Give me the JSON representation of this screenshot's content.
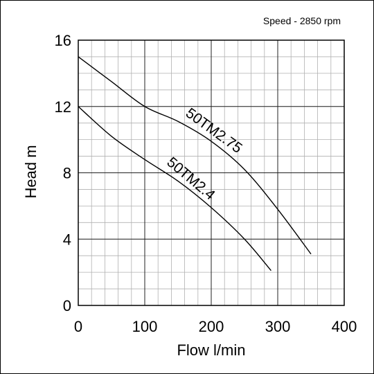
{
  "chart_data": {
    "type": "line",
    "title": "",
    "annotation": "Speed - 2850 rpm",
    "xlabel": "Flow l/min",
    "ylabel": "Head m",
    "xlim": [
      0,
      400
    ],
    "ylim": [
      0,
      16
    ],
    "x_ticks": [
      "0",
      "100",
      "200",
      "300",
      "400"
    ],
    "y_ticks": [
      "0",
      "4",
      "8",
      "12",
      "16"
    ],
    "x_tick_values": [
      0,
      100,
      200,
      300,
      400
    ],
    "y_tick_values": [
      0,
      4,
      8,
      12,
      16
    ],
    "x_minor_step": 20,
    "y_minor_step": 1,
    "grid": true,
    "legend": "none",
    "series": [
      {
        "name": "50TM2.75",
        "x": [
          0,
          50,
          100,
          150,
          200,
          250,
          300,
          350
        ],
        "y": [
          15,
          13.5,
          12,
          11.1,
          9.9,
          8.2,
          5.8,
          3.1
        ]
      },
      {
        "name": "50TM2.4",
        "x": [
          0,
          50,
          100,
          150,
          200,
          250,
          290
        ],
        "y": [
          12,
          10.2,
          8.8,
          7.5,
          5.9,
          4,
          2.1
        ]
      }
    ]
  }
}
